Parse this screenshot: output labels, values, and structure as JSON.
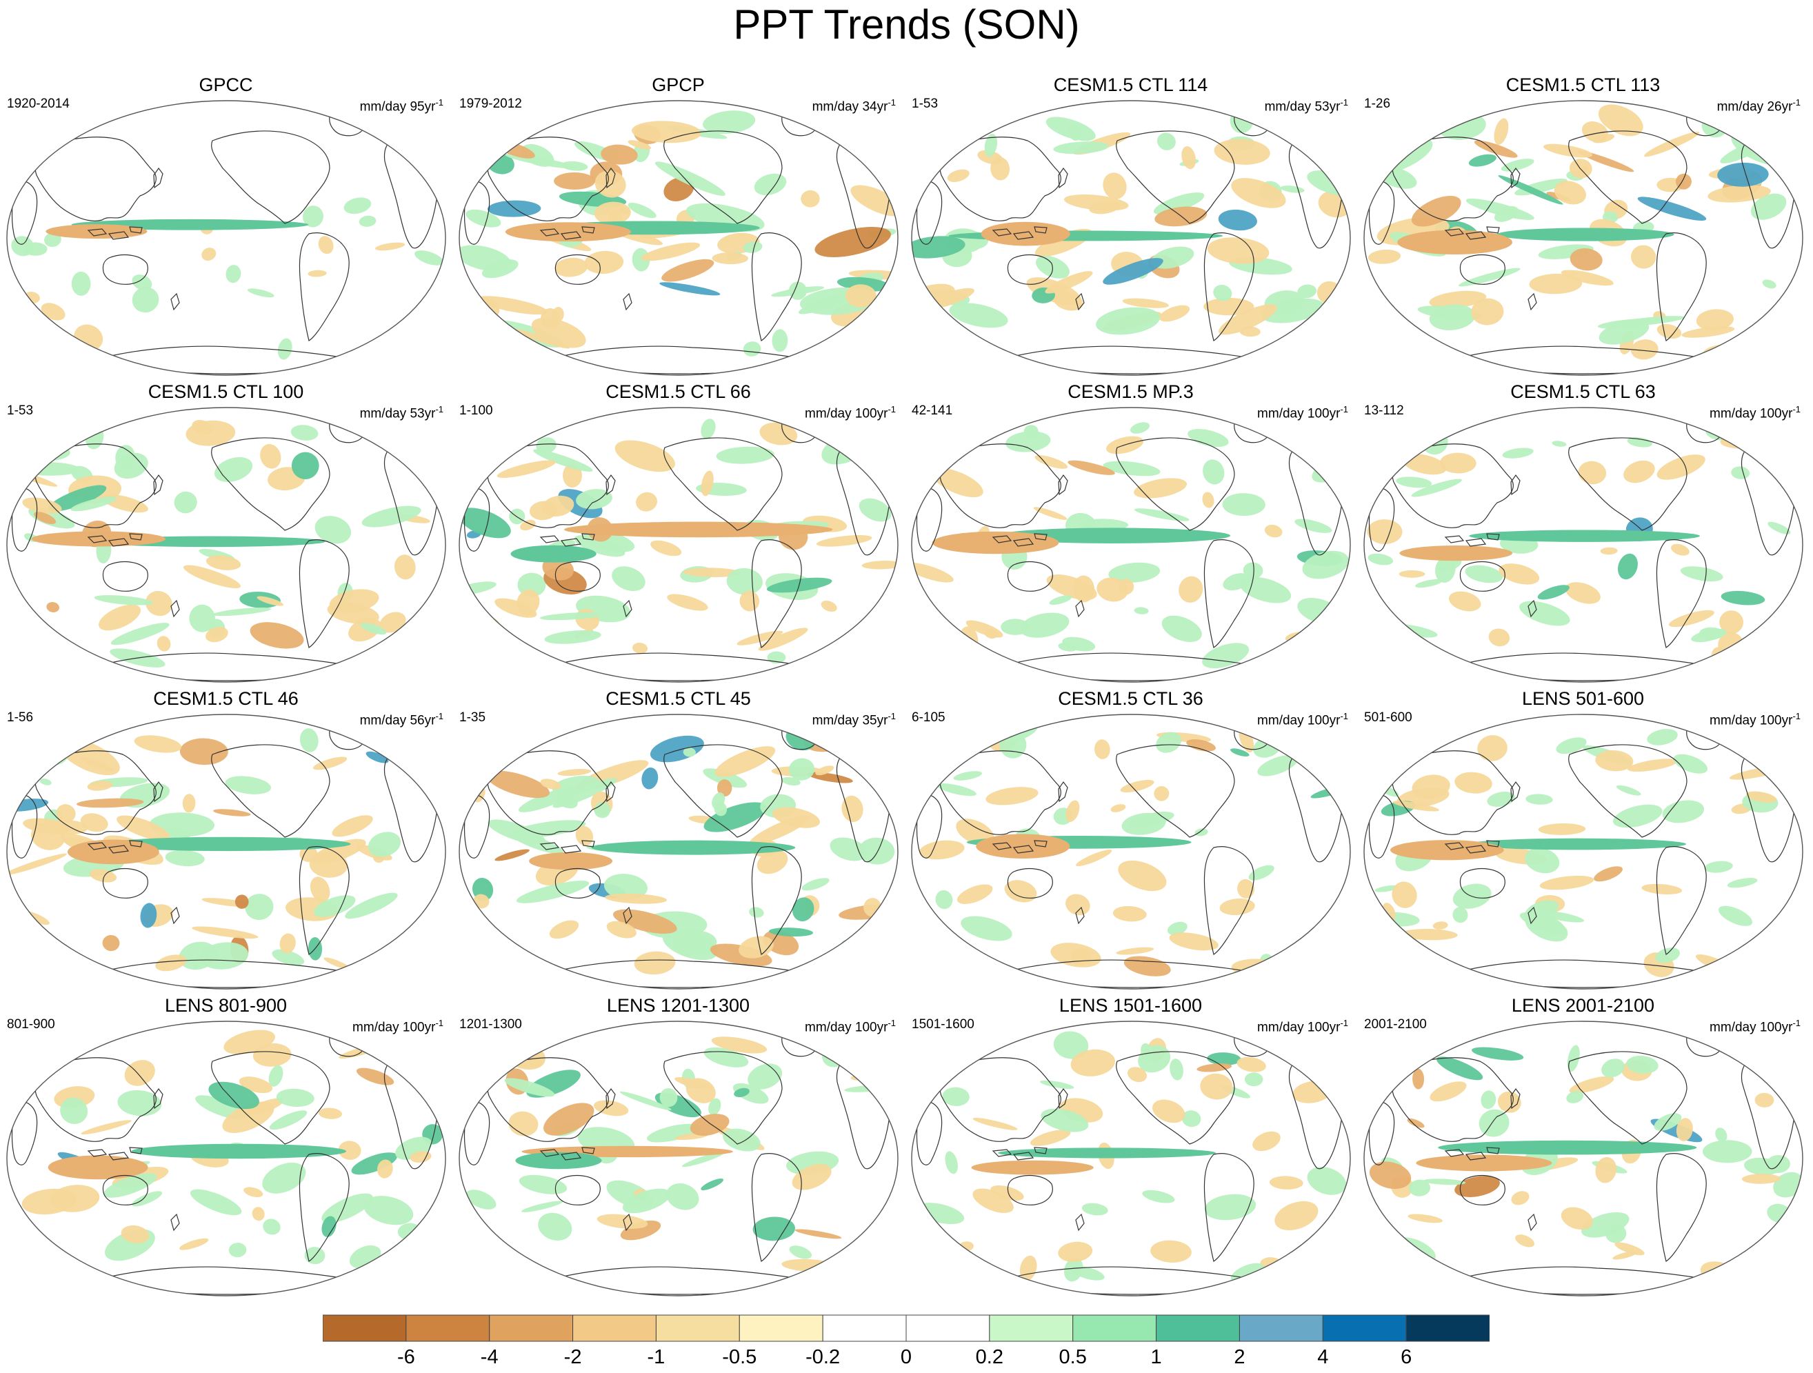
{
  "title": "PPT Trends (SON)",
  "units_prefix": "mm/day",
  "panels": [
    {
      "name": "GPCC",
      "period": "1920-2014",
      "trend_span": "95yr",
      "exp": "-1"
    },
    {
      "name": "GPCP",
      "period": "1979-2012",
      "trend_span": "34yr",
      "exp": "-1"
    },
    {
      "name": "CESM1.5 CTL 114",
      "period": "1-53",
      "trend_span": "53yr",
      "exp": "-1"
    },
    {
      "name": "CESM1.5 CTL 113",
      "period": "1-26",
      "trend_span": "26yr",
      "exp": "-1"
    },
    {
      "name": "CESM1.5 CTL 100",
      "period": "1-53",
      "trend_span": "53yr",
      "exp": "-1"
    },
    {
      "name": "CESM1.5 CTL 66",
      "period": "1-100",
      "trend_span": "100yr",
      "exp": "-1"
    },
    {
      "name": "CESM1.5 MP.3",
      "period": "42-141",
      "trend_span": "100yr",
      "exp": "-1"
    },
    {
      "name": "CESM1.5 CTL 63",
      "period": "13-112",
      "trend_span": "100yr",
      "exp": "-1"
    },
    {
      "name": "CESM1.5 CTL 46",
      "period": "1-56",
      "trend_span": "56yr",
      "exp": "-1"
    },
    {
      "name": "CESM1.5 CTL 45",
      "period": "1-35",
      "trend_span": "35yr",
      "exp": "-1"
    },
    {
      "name": "CESM1.5 CTL 36",
      "period": "6-105",
      "trend_span": "100yr",
      "exp": "-1"
    },
    {
      "name": "LENS 501-600",
      "period": "501-600",
      "trend_span": "100yr",
      "exp": "-1"
    },
    {
      "name": "LENS 801-900",
      "period": "801-900",
      "trend_span": "100yr",
      "exp": "-1"
    },
    {
      "name": "LENS 1201-1300",
      "period": "1201-1300",
      "trend_span": "100yr",
      "exp": "-1"
    },
    {
      "name": "LENS 1501-1600",
      "period": "1501-1600",
      "trend_span": "100yr",
      "exp": "-1"
    },
    {
      "name": "LENS 2001-2100",
      "period": "2001-2100",
      "trend_span": "100yr",
      "exp": "-1"
    }
  ],
  "colorbar": {
    "colors": [
      "#b5692b",
      "#cc8440",
      "#e0a25f",
      "#f2c986",
      "#f5deA0",
      "#fdf2c0",
      "#ffffff",
      "#ffffff",
      "#caf7c8",
      "#97e8b0",
      "#4fbf99",
      "#6aa8c8",
      "#0870b0",
      "#053a5c"
    ],
    "labels": [
      "-6",
      "-4",
      "-2",
      "-1",
      "-0.5",
      "-0.2",
      "0",
      "0.2",
      "0.5",
      "1",
      "2",
      "4",
      "6"
    ]
  },
  "palette": {
    "dry_strong": "#d08a48",
    "dry_mid": "#e8b071",
    "dry_light": "#f6d89a",
    "wet_light": "#b8f0c0",
    "wet_mid": "#5fc79a",
    "wet_strong": "#4fa3c4",
    "coast": "#333333"
  }
}
